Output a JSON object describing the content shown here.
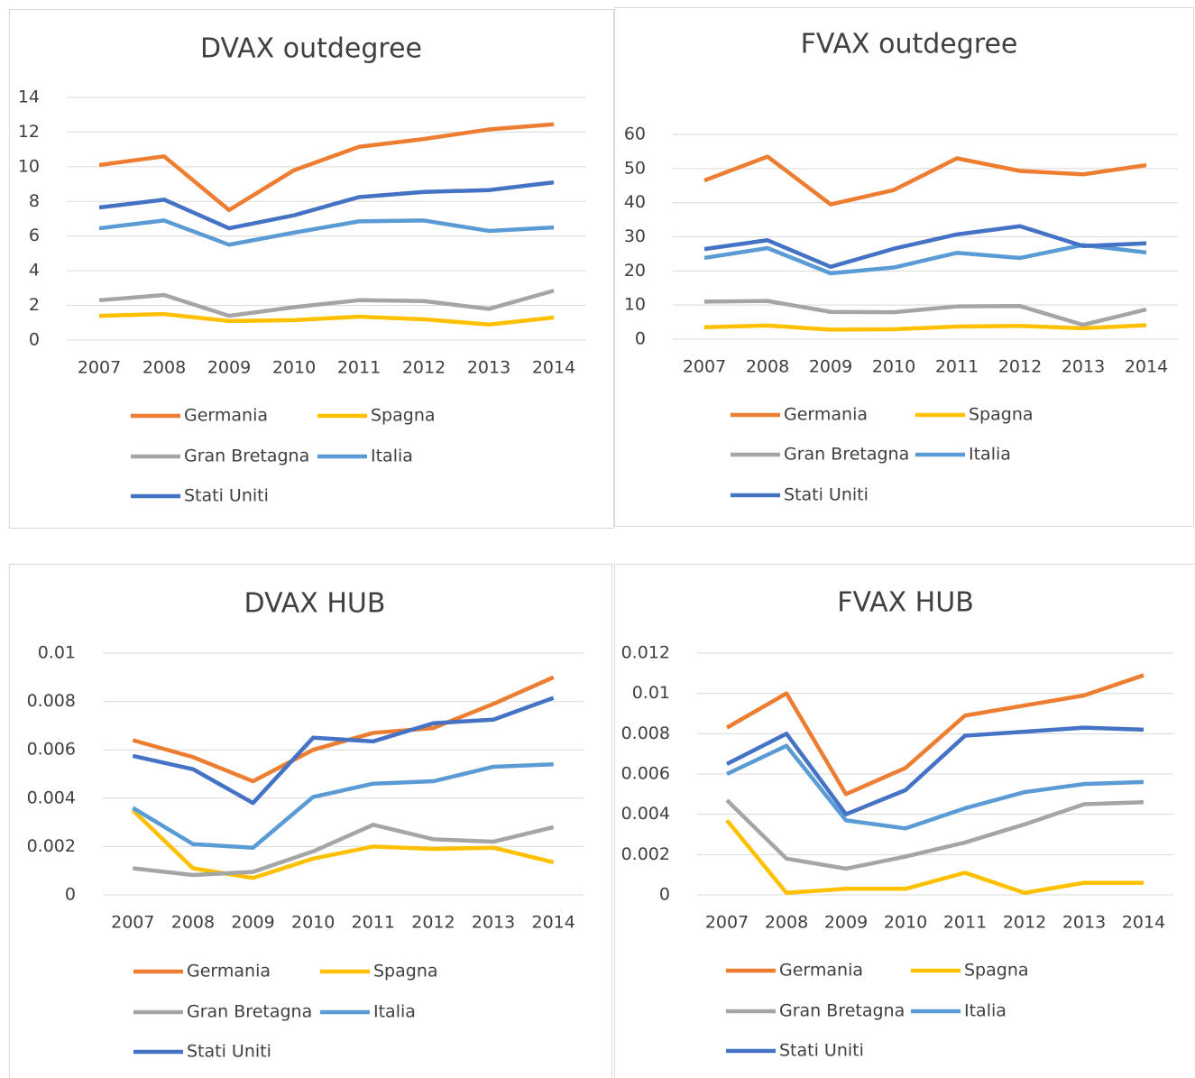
{
  "chart_data": [
    {
      "type": "line",
      "title": "DVAX outdegree",
      "categories": [
        "2007",
        "2008",
        "2009",
        "2010",
        "2011",
        "2012",
        "2013",
        "2014"
      ],
      "series": [
        {
          "name": "Germania",
          "color": "#ed7d31",
          "values": [
            10.1,
            10.6,
            7.5,
            9.8,
            11.15,
            11.6,
            12.15,
            12.45
          ]
        },
        {
          "name": "Spagna",
          "color": "#ffc000",
          "values": [
            1.4,
            1.5,
            1.1,
            1.15,
            1.35,
            1.2,
            0.9,
            1.3
          ]
        },
        {
          "name": "Gran Bretagna",
          "color": "#a5a5a5",
          "values": [
            2.3,
            2.6,
            1.4,
            1.9,
            2.3,
            2.25,
            1.8,
            2.85
          ]
        },
        {
          "name": "Italia",
          "color": "#5b9bd5",
          "values": [
            6.45,
            6.9,
            5.5,
            6.2,
            6.85,
            6.9,
            6.3,
            6.5
          ]
        },
        {
          "name": "Stati Uniti",
          "color": "#4472c4",
          "values": [
            7.65,
            8.1,
            6.45,
            7.2,
            8.25,
            8.55,
            8.65,
            9.1
          ]
        }
      ],
      "ylim": [
        0,
        14
      ],
      "yticks": [
        0,
        2,
        4,
        6,
        8,
        10,
        12,
        14
      ],
      "grid": true,
      "legend": "bottom"
    },
    {
      "type": "line",
      "title": "FVAX outdegree",
      "categories": [
        "2007",
        "2008",
        "2009",
        "2010",
        "2011",
        "2012",
        "2013",
        "2014"
      ],
      "series": [
        {
          "name": "Germania",
          "color": "#ed7d31",
          "values": [
            46.5,
            53.5,
            39.5,
            43.7,
            53,
            49.3,
            48.3,
            51
          ]
        },
        {
          "name": "Spagna",
          "color": "#ffc000",
          "values": [
            3.5,
            4,
            2.8,
            2.9,
            3.7,
            3.9,
            3.2,
            4.1
          ]
        },
        {
          "name": "Gran Bretagna",
          "color": "#a5a5a5",
          "values": [
            11,
            11.2,
            8,
            7.9,
            9.6,
            9.7,
            4.2,
            8.7
          ]
        },
        {
          "name": "Italia",
          "color": "#5b9bd5",
          "values": [
            23.8,
            26.7,
            19.3,
            21,
            25.3,
            23.8,
            27.6,
            25.4
          ]
        },
        {
          "name": "Stati Uniti",
          "color": "#4472c4",
          "values": [
            26.4,
            29,
            21.2,
            26.5,
            30.7,
            33.1,
            27.3,
            28.1
          ]
        }
      ],
      "ylim": [
        0,
        60
      ],
      "yticks": [
        0,
        10,
        20,
        30,
        40,
        50,
        60
      ],
      "grid": true,
      "legend": "bottom"
    },
    {
      "type": "line",
      "title": "DVAX HUB",
      "categories": [
        "2007",
        "2008",
        "2009",
        "2010",
        "2011",
        "2012",
        "2013",
        "2014"
      ],
      "series": [
        {
          "name": "Germania",
          "color": "#ed7d31",
          "values": [
            0.0064,
            0.0057,
            0.0047,
            0.006,
            0.0067,
            0.0069,
            0.0079,
            0.009
          ]
        },
        {
          "name": "Spagna",
          "color": "#ffc000",
          "values": [
            0.0035,
            0.0011,
            0.0007,
            0.0015,
            0.002,
            0.0019,
            0.00195,
            0.00135
          ]
        },
        {
          "name": "Gran Bretagna",
          "color": "#a5a5a5",
          "values": [
            0.0011,
            0.00082,
            0.00095,
            0.0018,
            0.0029,
            0.0023,
            0.0022,
            0.0028
          ]
        },
        {
          "name": "Italia",
          "color": "#5b9bd5",
          "values": [
            0.0036,
            0.0021,
            0.00195,
            0.00405,
            0.0046,
            0.0047,
            0.0053,
            0.0054
          ]
        },
        {
          "name": "Stati Uniti",
          "color": "#4472c4",
          "values": [
            0.00575,
            0.0052,
            0.0038,
            0.0065,
            0.00635,
            0.0071,
            0.00725,
            0.00815
          ]
        }
      ],
      "ylim": [
        0,
        0.01
      ],
      "yticks": [
        0,
        0.002,
        0.004,
        0.006,
        0.008,
        0.01
      ],
      "grid": true,
      "legend": "bottom"
    },
    {
      "type": "line",
      "title": "FVAX HUB",
      "categories": [
        "2007",
        "2008",
        "2009",
        "2010",
        "2011",
        "2012",
        "2013",
        "2014"
      ],
      "series": [
        {
          "name": "Germania",
          "color": "#ed7d31",
          "values": [
            0.0083,
            0.01,
            0.005,
            0.0063,
            0.0089,
            0.0094,
            0.0099,
            0.0109
          ]
        },
        {
          "name": "Spagna",
          "color": "#ffc000",
          "values": [
            0.0037,
            0.0001,
            0.0003,
            0.0003,
            0.0011,
            0.0001,
            0.0006,
            0.0006
          ]
        },
        {
          "name": "Gran Bretagna",
          "color": "#a5a5a5",
          "values": [
            0.0047,
            0.0018,
            0.0013,
            0.0019,
            0.0026,
            0.0035,
            0.0045,
            0.0046
          ]
        },
        {
          "name": "Italia",
          "color": "#5b9bd5",
          "values": [
            0.006,
            0.0074,
            0.0037,
            0.0033,
            0.0043,
            0.0051,
            0.0055,
            0.0056
          ]
        },
        {
          "name": "Stati Uniti",
          "color": "#4472c4",
          "values": [
            0.0065,
            0.008,
            0.004,
            0.0052,
            0.0079,
            0.0081,
            0.0083,
            0.0082
          ]
        }
      ],
      "ylim": [
        0,
        0.012
      ],
      "yticks": [
        0,
        0.002,
        0.004,
        0.006,
        0.008,
        0.01,
        0.012
      ],
      "grid": true,
      "legend": "bottom"
    }
  ]
}
